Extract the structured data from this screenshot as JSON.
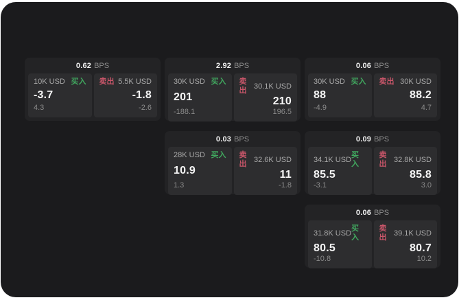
{
  "labels": {
    "bps": "BPS",
    "buy": "买入",
    "sell": "卖出"
  },
  "colors": {
    "page_background": "#1b1b1d",
    "card_background": "#232325",
    "panel_background": "#2d2d2f",
    "buy_accent": "#41a85f",
    "sell_accent": "#c9566a",
    "primary_text": "#f5f5f5",
    "muted_text": "#8a8a8a"
  },
  "cards": [
    {
      "bps": "0.62",
      "buy": {
        "amount": "10K USD",
        "value": "-3.7",
        "sub": "4.3"
      },
      "sell": {
        "amount": "5.5K USD",
        "value": "-1.8",
        "sub": "-2.6"
      }
    },
    {
      "bps": "2.92",
      "buy": {
        "amount": "30K USD",
        "value": "201",
        "sub": "-188.1"
      },
      "sell": {
        "amount": "30.1K USD",
        "value": "210",
        "sub": "196.5"
      }
    },
    {
      "bps": "0.06",
      "buy": {
        "amount": "30K USD",
        "value": "88",
        "sub": "-4.9"
      },
      "sell": {
        "amount": "30K USD",
        "value": "88.2",
        "sub": "4.7"
      }
    },
    {
      "bps": "0.03",
      "buy": {
        "amount": "28K USD",
        "value": "10.9",
        "sub": "1.3"
      },
      "sell": {
        "amount": "32.6K USD",
        "value": "11",
        "sub": "-1.8"
      }
    },
    {
      "bps": "0.09",
      "buy": {
        "amount": "34.1K USD",
        "value": "85.5",
        "sub": "-3.1"
      },
      "sell": {
        "amount": "32.8K USD",
        "value": "85.8",
        "sub": "3.0"
      }
    },
    {
      "bps": "0.06",
      "buy": {
        "amount": "31.8K USD",
        "value": "80.5",
        "sub": "-10.8"
      },
      "sell": {
        "amount": "39.1K USD",
        "value": "80.7",
        "sub": "10.2"
      }
    }
  ]
}
